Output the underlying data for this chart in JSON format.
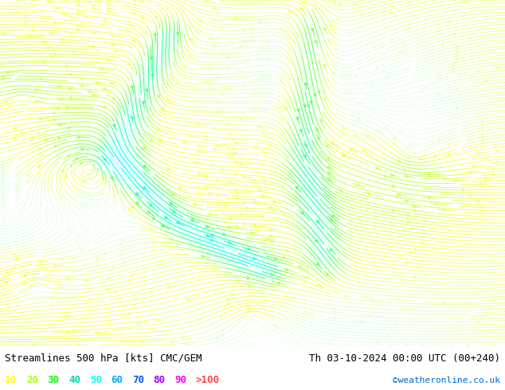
{
  "title_left": "Streamlines 500 hPa [kts] CMC/GEM",
  "title_right": "Th 03-10-2024 00:00 UTC (00+240)",
  "credit": "©weatheronline.co.uk",
  "legend_values": [
    "10",
    "20",
    "30",
    "40",
    "50",
    "60",
    "70",
    "80",
    "90",
    ">100"
  ],
  "legend_colors": [
    "#ffff00",
    "#aaff00",
    "#00ff00",
    "#00ddaa",
    "#00ffff",
    "#00aaff",
    "#0055ff",
    "#aa00ff",
    "#ff00ff",
    "#ff4444"
  ],
  "bg_color": "#ffffff",
  "fig_width": 6.34,
  "fig_height": 4.9,
  "dpi": 100,
  "title_fontsize": 9,
  "legend_fontsize": 9,
  "credit_fontsize": 8,
  "cmap_stops": [
    [
      0.0,
      "#ffffff"
    ],
    [
      0.05,
      "#ddffdd"
    ],
    [
      0.1,
      "#ffff44"
    ],
    [
      0.18,
      "#aaff44"
    ],
    [
      0.25,
      "#44ff44"
    ],
    [
      0.33,
      "#00ffaa"
    ],
    [
      0.42,
      "#00ffff"
    ],
    [
      0.52,
      "#00aaff"
    ],
    [
      0.62,
      "#4444ff"
    ],
    [
      0.72,
      "#8800ff"
    ],
    [
      0.82,
      "#ff00ff"
    ],
    [
      0.9,
      "#ff44aa"
    ],
    [
      1.0,
      "#ff2222"
    ]
  ]
}
